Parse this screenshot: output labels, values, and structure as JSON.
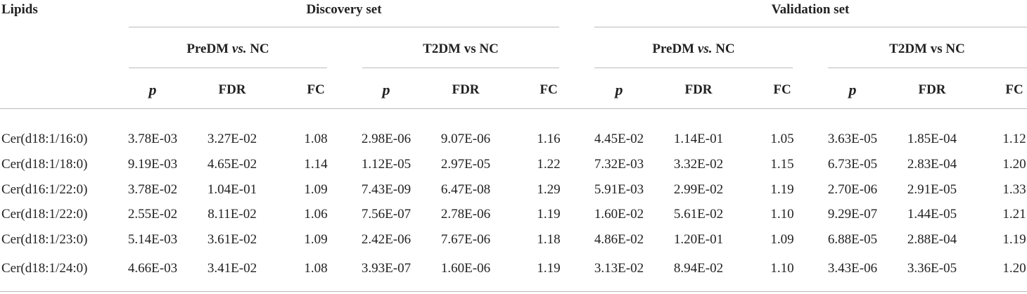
{
  "table": {
    "corner": "Lipids",
    "sets": [
      "Discovery set",
      "Validation set"
    ],
    "comparisons": [
      {
        "name": "PreDM",
        "vs": "vs.",
        "ref": "NC",
        "vs_italic": true
      },
      {
        "name": "T2DM",
        "vs": "vs",
        "ref": "NC",
        "vs_italic": false
      },
      {
        "name": "PreDM",
        "vs": "vs.",
        "ref": "NC",
        "vs_italic": true
      },
      {
        "name": "T2DM",
        "vs": "vs",
        "ref": "NC",
        "vs_italic": false
      }
    ],
    "measures": [
      "p",
      "FDR",
      "FC"
    ],
    "rows": [
      [
        "Cer(d18:1/16:0)",
        "3.78E-03",
        "3.27E-02",
        "1.08",
        "2.98E-06",
        "9.07E-06",
        "1.16",
        "4.45E-02",
        "1.14E-01",
        "1.05",
        "3.63E-05",
        "1.85E-04",
        "1.12"
      ],
      [
        "Cer(d18:1/18:0)",
        "9.19E-03",
        "4.65E-02",
        "1.14",
        "1.12E-05",
        "2.97E-05",
        "1.22",
        "7.32E-03",
        "3.32E-02",
        "1.15",
        "6.73E-05",
        "2.83E-04",
        "1.20"
      ],
      [
        "Cer(d16:1/22:0)",
        "3.78E-02",
        "1.04E-01",
        "1.09",
        "7.43E-09",
        "6.47E-08",
        "1.29",
        "5.91E-03",
        "2.99E-02",
        "1.19",
        "2.70E-06",
        "2.91E-05",
        "1.33"
      ],
      [
        "Cer(d18:1/22:0)",
        "2.55E-02",
        "8.11E-02",
        "1.06",
        "7.56E-07",
        "2.78E-06",
        "1.19",
        "1.60E-02",
        "5.61E-02",
        "1.10",
        "9.29E-07",
        "1.44E-05",
        "1.21"
      ],
      [
        "Cer(d18:1/23:0)",
        "5.14E-03",
        "3.61E-02",
        "1.09",
        "2.42E-06",
        "7.67E-06",
        "1.18",
        "4.86E-02",
        "1.20E-01",
        "1.09",
        "6.88E-05",
        "2.88E-04",
        "1.19"
      ],
      [
        "Cer(d18:1/24:0)",
        "4.66E-03",
        "3.41E-02",
        "1.08",
        "3.93E-07",
        "1.60E-06",
        "1.19",
        "3.13E-02",
        "8.94E-02",
        "1.10",
        "3.43E-06",
        "3.36E-05",
        "1.20"
      ]
    ]
  }
}
